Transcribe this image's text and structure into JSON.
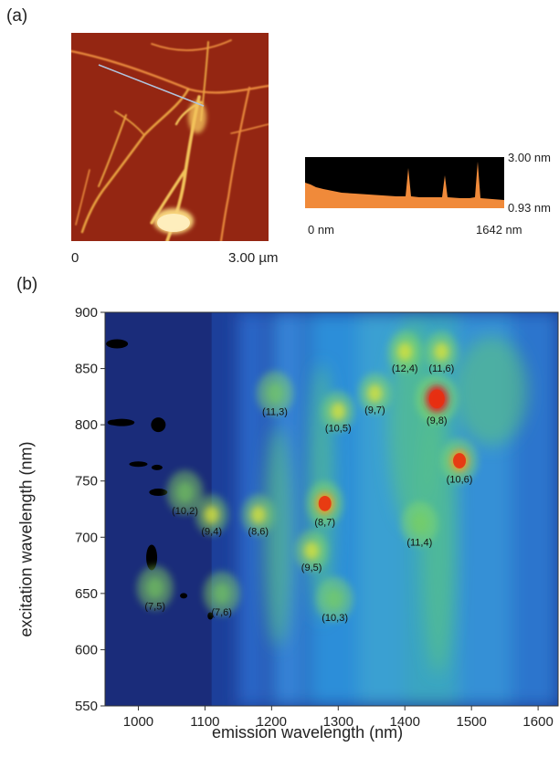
{
  "panel_a": {
    "label": "(a)",
    "afm": {
      "x_start": "0",
      "x_end": "3.00 µm"
    },
    "profile": {
      "top_label": "3.00 nm",
      "bottom_label": "0.93 nm",
      "x_start": "0 nm",
      "x_end": "1642 nm"
    }
  },
  "panel_b": {
    "label": "(b)"
  },
  "colors": {
    "afm_base": "#8e1f10",
    "profile_fill": "#f08a3a",
    "map_background": "#1c3f9a"
  },
  "chart_data": {
    "type": "heatmap",
    "xlabel": "emission wavelength (nm)",
    "ylabel": "excitation wavelength (nm)",
    "xlim": [
      950,
      1630
    ],
    "ylim": [
      550,
      900
    ],
    "x_ticks": [
      1000,
      1100,
      1200,
      1300,
      1400,
      1500,
      1600
    ],
    "y_ticks": [
      550,
      600,
      650,
      700,
      750,
      800,
      850,
      900
    ],
    "peaks": [
      {
        "label": "(7,5)",
        "emission": 1025,
        "excitation": 655,
        "intensity": "low"
      },
      {
        "label": "(7,6)",
        "emission": 1125,
        "excitation": 650,
        "intensity": "low"
      },
      {
        "label": "(10,2)",
        "emission": 1070,
        "excitation": 740,
        "intensity": "low"
      },
      {
        "label": "(9,4)",
        "emission": 1110,
        "excitation": 720,
        "intensity": "medium"
      },
      {
        "label": "(8,6)",
        "emission": 1180,
        "excitation": 720,
        "intensity": "medium"
      },
      {
        "label": "(8,7)",
        "emission": 1280,
        "excitation": 730,
        "intensity": "high"
      },
      {
        "label": "(9,5)",
        "emission": 1260,
        "excitation": 688,
        "intensity": "medium"
      },
      {
        "label": "(10,3)",
        "emission": 1295,
        "excitation": 645,
        "intensity": "low"
      },
      {
        "label": "(11,3)",
        "emission": 1205,
        "excitation": 828,
        "intensity": "low"
      },
      {
        "label": "(10,5)",
        "emission": 1300,
        "excitation": 812,
        "intensity": "medium"
      },
      {
        "label": "(9,7)",
        "emission": 1355,
        "excitation": 828,
        "intensity": "medium"
      },
      {
        "label": "(9,8)",
        "emission": 1448,
        "excitation": 823,
        "intensity": "very high"
      },
      {
        "label": "(10,6)",
        "emission": 1482,
        "excitation": 768,
        "intensity": "high"
      },
      {
        "label": "(11,4)",
        "emission": 1422,
        "excitation": 712,
        "intensity": "low"
      },
      {
        "label": "(12,4)",
        "emission": 1400,
        "excitation": 865,
        "intensity": "medium"
      },
      {
        "label": "(11,6)",
        "emission": 1455,
        "excitation": 865,
        "intensity": "medium"
      }
    ],
    "grid": false,
    "legend": "none"
  }
}
